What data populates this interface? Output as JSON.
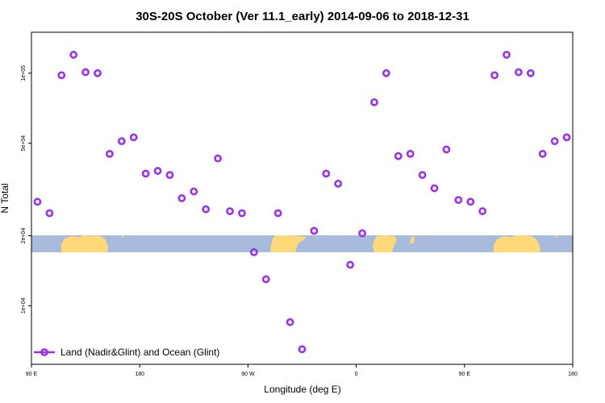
{
  "chart_data": {
    "type": "scatter",
    "title": "30S-20S October (Ver 11.1_early)   2014-09-06 to 2018-12-31",
    "xlabel": "Longitude (deg E)",
    "ylabel": "N Total",
    "y_scale": "log",
    "x_ticks": [
      {
        "value": 90,
        "label": "90 E"
      },
      {
        "value": 180,
        "label": "180"
      },
      {
        "value": 270,
        "label": "90 W"
      },
      {
        "value": 360,
        "label": "0"
      },
      {
        "value": 450,
        "label": "90 E"
      },
      {
        "value": 540,
        "label": "180"
      }
    ],
    "y_ticks": [
      {
        "value": 10000,
        "label": "1e+04"
      },
      {
        "value": 20000,
        "label": "2e+04"
      },
      {
        "value": 50000,
        "label": "5e+04"
      },
      {
        "value": 100000,
        "label": "1e+05"
      }
    ],
    "xlim": [
      90,
      540
    ],
    "ylim": [
      5600,
      150000
    ],
    "grid": false,
    "legend_position": "bottom-left",
    "colors": {
      "marker": "#9b30f0",
      "ocean_band": "#a7bbdc",
      "land": "#ffd878"
    },
    "series": [
      {
        "name": "Land (Nadir&Glint) and Ocean (Glint)",
        "x": [
          95,
          105,
          115,
          125,
          135,
          145,
          155,
          165,
          175,
          185,
          195,
          205,
          215,
          225,
          235,
          245,
          255,
          265,
          275,
          285,
          295,
          305,
          315,
          325,
          335,
          345,
          355,
          365,
          375,
          385,
          395,
          405,
          415,
          425,
          435,
          445,
          455,
          465,
          475,
          485,
          495,
          505,
          515,
          525,
          535
        ],
        "y": [
          28000,
          25000,
          98000,
          120000,
          101000,
          100000,
          45000,
          51000,
          53000,
          37000,
          38000,
          36500,
          29000,
          31000,
          26000,
          43000,
          25500,
          25000,
          17000,
          13000,
          25000,
          8500,
          6500,
          21000,
          37000,
          33500,
          15000,
          20500,
          75000,
          100000,
          44000,
          45000,
          36500,
          32000,
          47000,
          28500,
          28000,
          25500,
          98000,
          120000,
          101000,
          100000,
          45000,
          51000,
          53000
        ]
      }
    ]
  }
}
